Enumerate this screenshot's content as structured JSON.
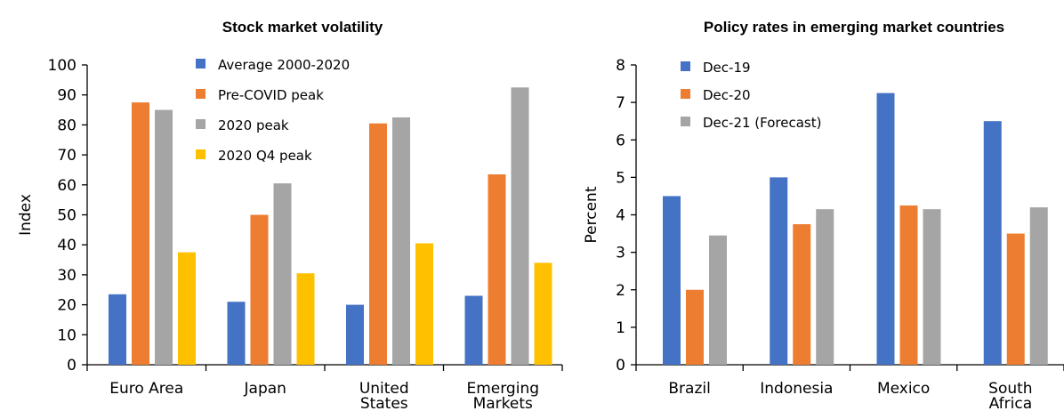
{
  "chart_data": [
    {
      "type": "bar",
      "title": "Stock market volatility",
      "ylabel": "Index",
      "xlabel": "",
      "ylim": [
        0,
        100
      ],
      "yticks": [
        0,
        10,
        20,
        30,
        40,
        50,
        60,
        70,
        80,
        90,
        100
      ],
      "categories": [
        [
          "Euro Area"
        ],
        [
          "Japan"
        ],
        [
          "United",
          "States"
        ],
        [
          "Emerging",
          "Markets"
        ]
      ],
      "legend_position": "top-center",
      "grid": false,
      "series": [
        {
          "name": "Average 2000-2020",
          "color": "#4472C4",
          "values": [
            23.5,
            21,
            20,
            23
          ]
        },
        {
          "name": "Pre-COVID peak",
          "color": "#ED7D31",
          "values": [
            87.5,
            50,
            80.5,
            63.5
          ]
        },
        {
          "name": "2020 peak",
          "color": "#A5A5A5",
          "values": [
            85,
            60.5,
            82.5,
            92.5
          ]
        },
        {
          "name": "2020 Q4 peak",
          "color": "#FFC000",
          "values": [
            37.5,
            30.5,
            40.5,
            34
          ]
        }
      ]
    },
    {
      "type": "bar",
      "title": "Policy rates in emerging market countries",
      "ylabel": "Percent",
      "xlabel": "",
      "ylim": [
        0,
        8
      ],
      "yticks": [
        0,
        1,
        2,
        3,
        4,
        5,
        6,
        7,
        8
      ],
      "categories": [
        [
          "Brazil"
        ],
        [
          "Indonesia"
        ],
        [
          "Mexico"
        ],
        [
          "South",
          "Africa"
        ]
      ],
      "legend_position": "top-left",
      "grid": false,
      "series": [
        {
          "name": "Dec-19",
          "color": "#4472C4",
          "values": [
            4.5,
            5.0,
            7.25,
            6.5
          ]
        },
        {
          "name": "Dec-20",
          "color": "#ED7D31",
          "values": [
            2.0,
            3.75,
            4.25,
            3.5
          ]
        },
        {
          "name": "Dec-21 (Forecast)",
          "color": "#A5A5A5",
          "values": [
            3.45,
            4.15,
            4.15,
            4.2
          ]
        }
      ]
    }
  ]
}
